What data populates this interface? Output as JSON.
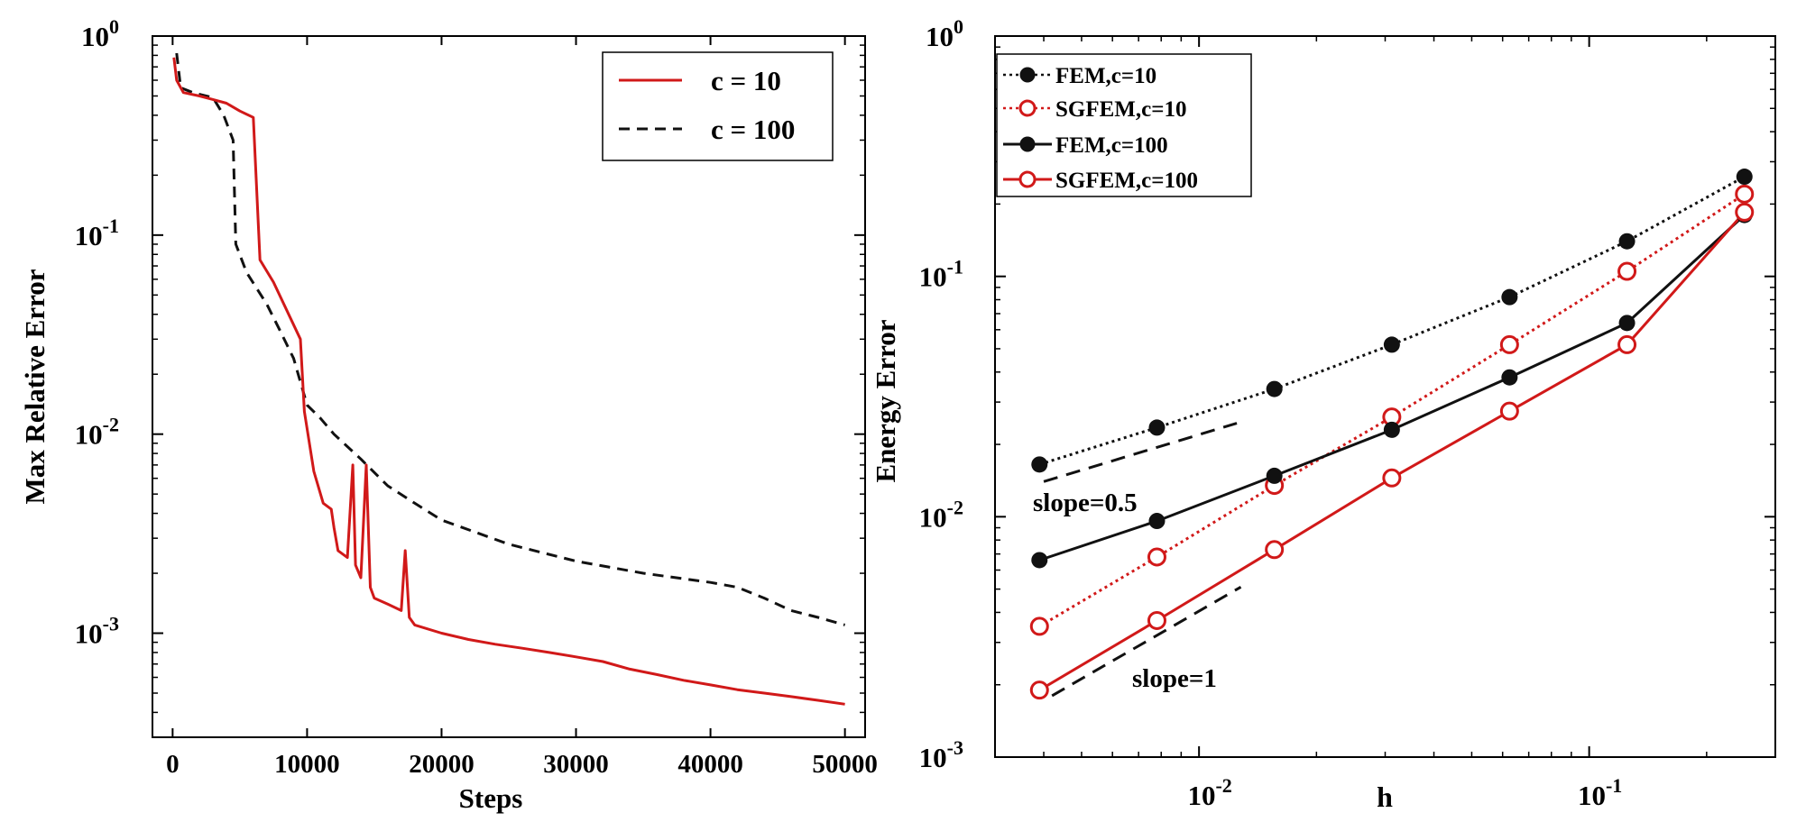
{
  "chart_data": [
    {
      "type": "line",
      "xlabel": "Steps",
      "ylabel": "Max Relative Error",
      "x_scale": "linear",
      "y_scale": "log",
      "xlim": [
        -1500,
        51500
      ],
      "ylim": [
        0.0003,
        1.0
      ],
      "xticks": [
        0,
        10000,
        20000,
        30000,
        40000,
        50000
      ],
      "xtick_labels": [
        "0",
        "10000",
        "20000",
        "30000",
        "40000",
        "50000"
      ],
      "yticks": [
        1.0,
        0.1,
        0.01,
        0.001
      ],
      "ytick_labels": [
        {
          "base": "10",
          "exp": "0"
        },
        {
          "base": "10",
          "exp": "-1"
        },
        {
          "base": "10",
          "exp": "-2"
        },
        {
          "base": "10",
          "exp": "-3"
        }
      ],
      "legend_position": "top-right",
      "series": [
        {
          "name": "c = 10",
          "color": "#d11919",
          "dash": "solid",
          "points": [
            [
              100,
              0.78
            ],
            [
              300,
              0.6
            ],
            [
              800,
              0.52
            ],
            [
              2000,
              0.5
            ],
            [
              3000,
              0.48
            ],
            [
              4000,
              0.46
            ],
            [
              5000,
              0.42
            ],
            [
              6000,
              0.39
            ],
            [
              6500,
              0.075
            ],
            [
              7500,
              0.058
            ],
            [
              9500,
              0.03
            ],
            [
              9800,
              0.013
            ],
            [
              10500,
              0.0065
            ],
            [
              11200,
              0.0045
            ],
            [
              11800,
              0.0042
            ],
            [
              12000,
              0.0034
            ],
            [
              12300,
              0.0026
            ],
            [
              13000,
              0.0024
            ],
            [
              13400,
              0.007
            ],
            [
              13600,
              0.0022
            ],
            [
              14000,
              0.0019
            ],
            [
              14400,
              0.007
            ],
            [
              14700,
              0.0017
            ],
            [
              15000,
              0.0015
            ],
            [
              16000,
              0.0014
            ],
            [
              17000,
              0.0013
            ],
            [
              17300,
              0.0026
            ],
            [
              17600,
              0.0012
            ],
            [
              18000,
              0.0011
            ],
            [
              20000,
              0.001
            ],
            [
              22000,
              0.00093
            ],
            [
              24000,
              0.00088
            ],
            [
              26000,
              0.00084
            ],
            [
              28000,
              0.0008
            ],
            [
              30000,
              0.00076
            ],
            [
              32000,
              0.00072
            ],
            [
              34000,
              0.00066
            ],
            [
              36000,
              0.00062
            ],
            [
              38000,
              0.00058
            ],
            [
              40000,
              0.00055
            ],
            [
              42000,
              0.00052
            ],
            [
              44000,
              0.0005
            ],
            [
              46000,
              0.00048
            ],
            [
              48000,
              0.00046
            ],
            [
              50000,
              0.00044
            ]
          ]
        },
        {
          "name": "c = 100",
          "color": "#111111",
          "dash": "dashed",
          "points": [
            [
              300,
              0.82
            ],
            [
              600,
              0.55
            ],
            [
              1500,
              0.52
            ],
            [
              3000,
              0.49
            ],
            [
              3800,
              0.4
            ],
            [
              4500,
              0.3
            ],
            [
              4700,
              0.09
            ],
            [
              5500,
              0.065
            ],
            [
              7000,
              0.045
            ],
            [
              8000,
              0.033
            ],
            [
              9000,
              0.024
            ],
            [
              10000,
              0.014
            ],
            [
              11000,
              0.012
            ],
            [
              12000,
              0.01
            ],
            [
              14000,
              0.0075
            ],
            [
              16000,
              0.0055
            ],
            [
              18000,
              0.0045
            ],
            [
              20000,
              0.0037
            ],
            [
              25000,
              0.0028
            ],
            [
              30000,
              0.0023
            ],
            [
              35000,
              0.002
            ],
            [
              40000,
              0.0018
            ],
            [
              42000,
              0.0017
            ],
            [
              44000,
              0.0015
            ],
            [
              46000,
              0.0013
            ],
            [
              48000,
              0.0012
            ],
            [
              50000,
              0.0011
            ]
          ]
        }
      ]
    },
    {
      "type": "line",
      "xlabel": "h",
      "ylabel": "Energy Error",
      "x_scale": "log",
      "y_scale": "log",
      "xlim": [
        0.003,
        0.3
      ],
      "ylim": [
        0.001,
        1.0
      ],
      "xticks": [
        0.01,
        0.1
      ],
      "xtick_labels": [
        {
          "base": "10",
          "exp": "-2"
        },
        {
          "base": "10",
          "exp": "-1"
        }
      ],
      "yticks": [
        1.0,
        0.1,
        0.01,
        0.001
      ],
      "ytick_labels": [
        {
          "base": "10",
          "exp": "0"
        },
        {
          "base": "10",
          "exp": "-1"
        },
        {
          "base": "10",
          "exp": "-2"
        },
        {
          "base": "10",
          "exp": "-3"
        }
      ],
      "legend_position": "top-left",
      "x": [
        0.0039,
        0.0078,
        0.0156,
        0.0312,
        0.0625,
        0.125,
        0.25
      ],
      "series": [
        {
          "name": "FEM,c=10",
          "color": "#111111",
          "dash": "dotted",
          "marker": "filled-circle",
          "values": [
            0.0165,
            0.0235,
            0.034,
            0.052,
            0.082,
            0.14,
            0.26
          ]
        },
        {
          "name": "SGFEM,c=10",
          "color": "#d11919",
          "dash": "dotted",
          "marker": "open-circle",
          "values": [
            0.0035,
            0.0068,
            0.0135,
            0.026,
            0.052,
            0.105,
            0.22
          ]
        },
        {
          "name": "FEM,c=100",
          "color": "#111111",
          "dash": "solid",
          "marker": "filled-circle",
          "values": [
            0.0066,
            0.0096,
            0.0148,
            0.023,
            0.038,
            0.064,
            0.18
          ]
        },
        {
          "name": "SGFEM,c=100",
          "color": "#d11919",
          "dash": "solid",
          "marker": "open-circle",
          "values": [
            0.0019,
            0.0037,
            0.0073,
            0.0145,
            0.0275,
            0.052,
            0.185
          ]
        }
      ],
      "reference_lines": [
        {
          "label": "slope=0.5",
          "x": [
            0.004,
            0.0125
          ],
          "y": [
            0.014,
            0.0245
          ]
        },
        {
          "label": "slope=1",
          "x": [
            0.0042,
            0.0128
          ],
          "y": [
            0.0018,
            0.0051
          ]
        }
      ]
    }
  ]
}
